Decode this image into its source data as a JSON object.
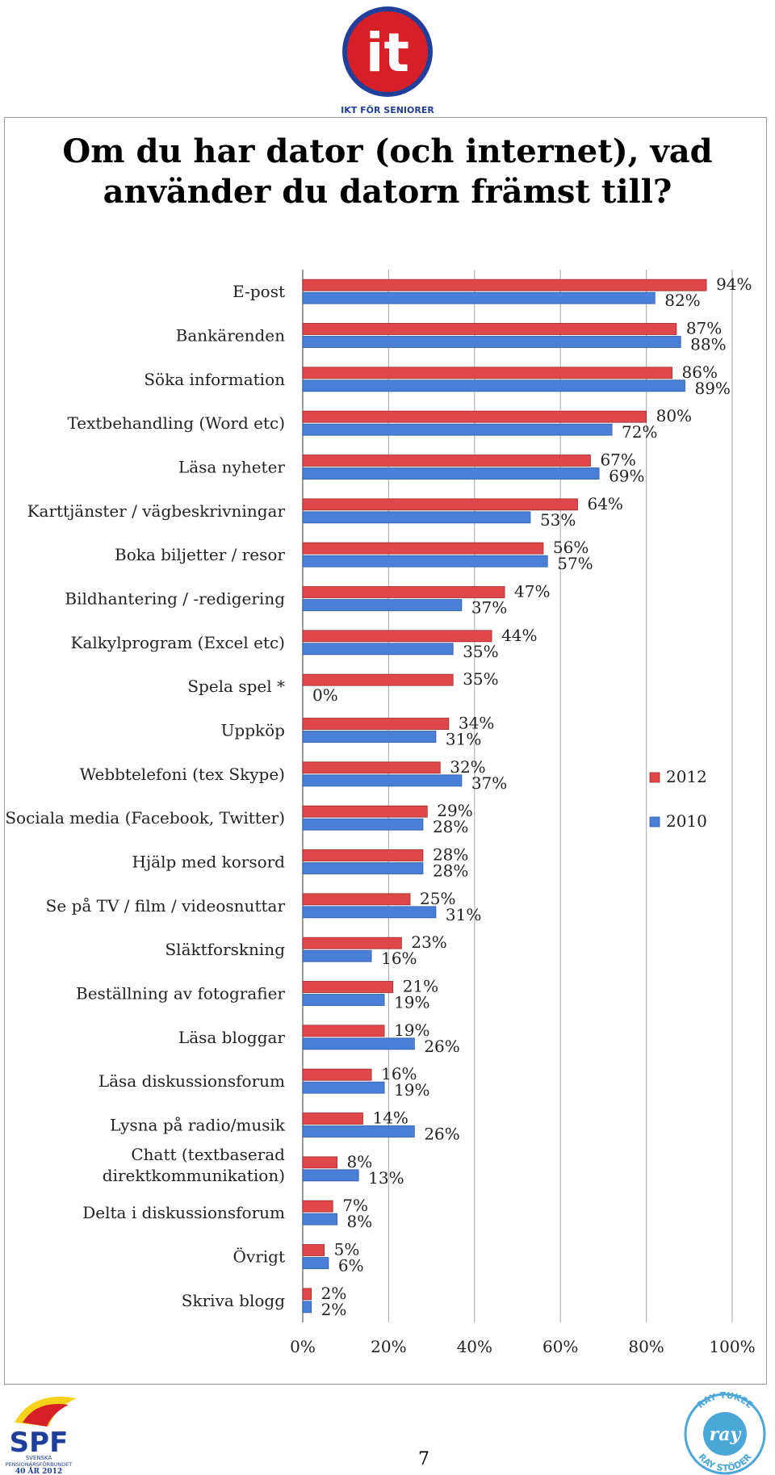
{
  "title_line1": "Om du har dator (och internet), vad",
  "title_line2": "använder du datorn främst till?",
  "logo_it": {
    "mark": "it",
    "subtitle": "IKT FÖR SENIORER",
    "colors": [
      "#1f3f9a",
      "#d61f26",
      "#f4d21a"
    ]
  },
  "logo_spf": {
    "mark": "SPF",
    "line1": "SVENSKA",
    "line2": "PENSIONÄRSFÖRBUNDET",
    "line3": "40 ÅR 2012",
    "colors": [
      "#1f3f9a",
      "#d61f26",
      "#f4d21a"
    ]
  },
  "logo_ray": {
    "top_text": "RAY TUKEE",
    "center_text": "ray",
    "bottom_text": "RAY STÖDER",
    "color": "#4aa7d8"
  },
  "page_number": "7",
  "chart_data": {
    "type": "bar",
    "orientation": "horizontal",
    "title": "Om du har dator (och internet), vad använder du datorn främst till?",
    "categories": [
      "E-post",
      "Bankärenden",
      "Söka information",
      "Textbehandling (Word etc)",
      "Läsa nyheter",
      "Karttjänster / vägbeskrivningar",
      "Boka biljetter / resor",
      "Bildhantering / -redigering",
      "Kalkylprogram (Excel etc)",
      "Spela spel *",
      "Uppköp",
      "Webbtelefoni (tex Skype)",
      "Sociala media (Facebook, Twitter)",
      "Hjälp med korsord",
      "Se på TV / film / videosnuttar",
      "Släktforskning",
      "Beställning av fotografier",
      "Läsa bloggar",
      "Läsa diskussionsforum",
      "Lysna på radio/musik",
      [
        "Chatt (textbaserad",
        "direktkommunikation)"
      ],
      "Delta i diskussionsforum",
      "Övrigt",
      "Skriva blogg"
    ],
    "series": [
      {
        "name": "2012",
        "color": "#e0474a",
        "values": [
          94,
          87,
          86,
          80,
          67,
          64,
          56,
          47,
          44,
          35,
          34,
          32,
          29,
          28,
          25,
          23,
          21,
          19,
          16,
          14,
          8,
          7,
          5,
          2
        ]
      },
      {
        "name": "2010",
        "color": "#4a7fd8",
        "values": [
          82,
          88,
          89,
          72,
          69,
          53,
          57,
          37,
          35,
          0,
          31,
          37,
          28,
          28,
          31,
          16,
          19,
          26,
          19,
          26,
          13,
          8,
          6,
          2
        ]
      }
    ],
    "xlim": [
      0,
      100
    ],
    "xticks": [
      "0%",
      "20%",
      "40%",
      "60%",
      "80%",
      "100%"
    ],
    "value_suffix": "%",
    "grid": true,
    "legend": "right"
  }
}
